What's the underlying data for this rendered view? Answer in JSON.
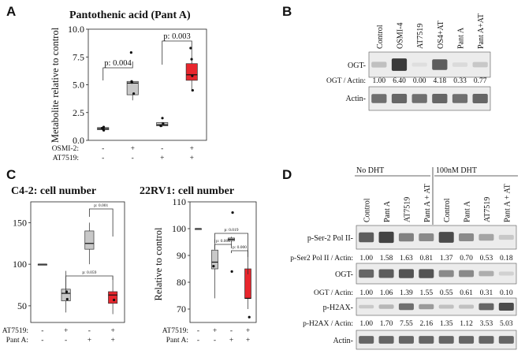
{
  "panels": {
    "A": "A",
    "B": "B",
    "C": "C",
    "D": "D"
  },
  "colors": {
    "gray_box": "#c8c8c8",
    "red_box": "#e8262d",
    "axis": "#222222",
    "bracket": "#333333",
    "blot_bg": "#ececec",
    "band": "#3a3a3a"
  },
  "chart_data": [
    {
      "id": "panelA",
      "type": "box",
      "title": "Pantothenic acid (Pant A)",
      "ylabel": "Metabolite relative to control",
      "ylim": [
        0,
        10
      ],
      "yticks": [
        "0.0",
        "2.5",
        "5.0",
        "7.5",
        "10.0"
      ],
      "x_factors": [
        {
          "name": "OSMI-2:",
          "values": [
            "-",
            "+",
            "-",
            "+"
          ]
        },
        {
          "name": "AT7519:",
          "values": [
            "-",
            "-",
            "+",
            "+"
          ]
        }
      ],
      "groups": [
        {
          "name": "control",
          "color": "gray",
          "min": 0.85,
          "q1": 0.95,
          "median": 1.05,
          "q3": 1.15,
          "max": 1.25,
          "points": [
            0.9,
            1.0,
            1.1,
            1.2
          ]
        },
        {
          "name": "OSMI-2",
          "color": "gray",
          "min": 3.6,
          "q1": 4.1,
          "median": 5.15,
          "q3": 5.3,
          "max": 5.3,
          "points": [
            4.2,
            5.2,
            5.3,
            7.9
          ]
        },
        {
          "name": "AT7519",
          "color": "gray",
          "min": 1.2,
          "q1": 1.3,
          "median": 1.4,
          "q3": 1.6,
          "max": 1.65,
          "points": [
            1.3,
            1.5,
            2.0
          ]
        },
        {
          "name": "OSMI-2+AT7519",
          "color": "red",
          "min": 4.4,
          "q1": 5.4,
          "median": 5.9,
          "q3": 6.9,
          "max": 8.4,
          "points": [
            4.5,
            5.8,
            7.3,
            8.3
          ]
        }
      ],
      "annotations": [
        {
          "text": "p: 0.004",
          "between": [
            0,
            1
          ]
        },
        {
          "text": "p: 0.003",
          "between": [
            2,
            3
          ]
        }
      ]
    },
    {
      "id": "panelC1",
      "type": "box",
      "title": "C4-2: cell number",
      "ylabel": "",
      "ylim": [
        30,
        175
      ],
      "yticks": [
        "50",
        "100",
        "150"
      ],
      "x_factors": [
        {
          "name": "AT7519:",
          "values": [
            "-",
            "+",
            "-",
            "+"
          ]
        },
        {
          "name": "Pant A:",
          "values": [
            "-",
            "-",
            "+",
            "+"
          ]
        }
      ],
      "groups": [
        {
          "name": "control",
          "color": "gray",
          "min": 100,
          "q1": 100,
          "median": 100,
          "q3": 100,
          "max": 100,
          "points": []
        },
        {
          "name": "AT7519",
          "color": "gray",
          "min": 42,
          "q1": 56,
          "median": 65,
          "q3": 70,
          "max": 92,
          "points": [
            58,
            67
          ]
        },
        {
          "name": "Pant A",
          "color": "gray",
          "min": 100,
          "q1": 118,
          "median": 125,
          "q3": 140,
          "max": 150,
          "points": []
        },
        {
          "name": "AT7519+Pant A",
          "color": "red",
          "min": 40,
          "q1": 53,
          "median": 63,
          "q3": 67,
          "max": 85,
          "points": [
            57
          ]
        }
      ],
      "annotations": [
        {
          "text": "p: 0.001",
          "between": [
            2,
            3
          ]
        },
        {
          "text": "p: 0.059",
          "between": [
            1,
            3
          ]
        }
      ]
    },
    {
      "id": "panelC2",
      "type": "box",
      "title": "22RV1: cell number",
      "ylabel": "Relative to control",
      "ylim": [
        65,
        110
      ],
      "yticks": [
        "70",
        "80",
        "90",
        "100",
        "110"
      ],
      "x_factors": [
        {
          "name": "AT7519:",
          "values": [
            "-",
            "+",
            "-",
            "+"
          ]
        },
        {
          "name": "Pant A:",
          "values": [
            "-",
            "-",
            "+",
            "+"
          ]
        }
      ],
      "groups": [
        {
          "name": "control",
          "color": "gray",
          "min": 100,
          "q1": 100,
          "median": 100,
          "q3": 100,
          "max": 100,
          "points": []
        },
        {
          "name": "AT7519",
          "color": "gray",
          "min": 74,
          "q1": 85,
          "median": 87.5,
          "q3": 92,
          "max": 96,
          "points": [
            86
          ]
        },
        {
          "name": "Pant A",
          "color": "gray",
          "min": 94,
          "q1": 95.5,
          "median": 96,
          "q3": 96.5,
          "max": 97,
          "points": [
            84,
            106
          ]
        },
        {
          "name": "AT7519+Pant A",
          "color": "red",
          "min": 70,
          "q1": 74,
          "median": 74,
          "q3": 85,
          "max": 85,
          "points": [
            67
          ]
        }
      ],
      "annotations": [
        {
          "text": "p: 0.019",
          "between": [
            1,
            3
          ]
        },
        {
          "text": "p: 0.001",
          "between": [
            1,
            2
          ]
        },
        {
          "text": "p: 0.000",
          "between": [
            2,
            3
          ]
        }
      ]
    }
  ],
  "blotB": {
    "lanes": [
      "Control",
      "OSMI-4",
      "AT7519",
      "OS4+AT",
      "Pant A",
      "Pant A+AT"
    ],
    "blots": [
      {
        "label": "OGT-",
        "bands": [
          0.25,
          1.0,
          0.05,
          0.8,
          0.1,
          0.2
        ]
      },
      {
        "label": "Actin-",
        "bands": [
          0.7,
          0.75,
          0.7,
          0.75,
          0.7,
          0.75
        ]
      }
    ],
    "ratio_label": "OGT / Actin:",
    "ratios": [
      "1.00",
      "6.40",
      "0.00",
      "4.18",
      "0.33",
      "0.77"
    ]
  },
  "blotD": {
    "group_labels": [
      "No DHT",
      "100nM DHT"
    ],
    "lanes": [
      "Control",
      "Pant A",
      "AT7519",
      "Pant A + AT",
      "Control",
      "Pant A",
      "AT7519",
      "Pant A + AT"
    ],
    "blots": [
      {
        "label": "p-Ser-2 Pol II-",
        "ratio_label": "p-Ser2 Pol II / Actin:",
        "ratios": [
          "1.00",
          "1.58",
          "1.63",
          "0.81",
          "1.37",
          "0.70",
          "0.53",
          "0.18"
        ],
        "bands": [
          0.8,
          0.95,
          0.6,
          0.55,
          0.9,
          0.55,
          0.4,
          0.2
        ]
      },
      {
        "label": "OGT-",
        "ratio_label": "OGT / Actin:",
        "ratios": [
          "1.00",
          "1.06",
          "1.39",
          "1.55",
          "0.55",
          "0.61",
          "0.31",
          "0.10"
        ],
        "bands": [
          0.75,
          0.8,
          0.85,
          0.85,
          0.55,
          0.55,
          0.35,
          0.15
        ]
      },
      {
        "label": "p-H2AX-",
        "ratio_label": "p-H2AX / Actin:",
        "ratios": [
          "1.00",
          "1.70",
          "7.55",
          "2.16",
          "1.35",
          "1.12",
          "3.53",
          "5.03"
        ],
        "bands": [
          0.2,
          0.3,
          0.7,
          0.45,
          0.25,
          0.25,
          0.75,
          0.9
        ]
      },
      {
        "label": "Actin-",
        "ratio_label": "",
        "ratios": [],
        "bands": [
          0.75,
          0.75,
          0.75,
          0.75,
          0.75,
          0.75,
          0.75,
          0.75
        ]
      }
    ]
  }
}
